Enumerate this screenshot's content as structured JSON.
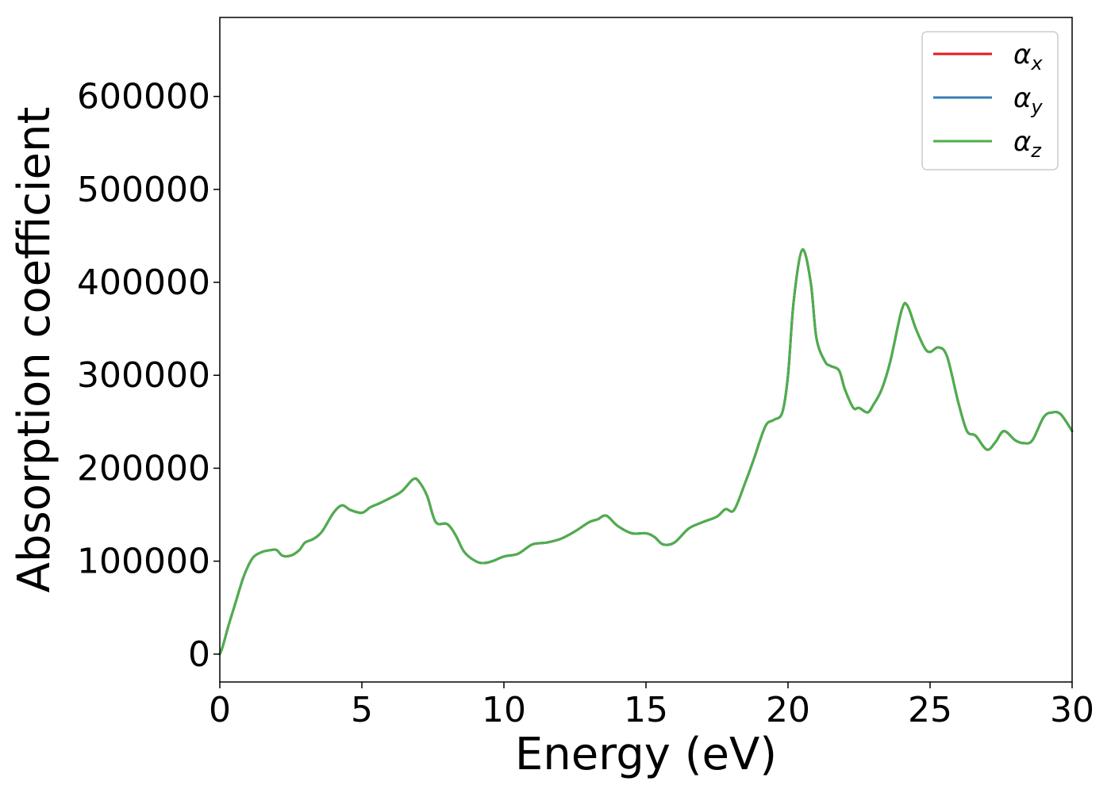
{
  "chart_data": {
    "type": "line",
    "xlabel": "Energy (eV)",
    "ylabel": "Absorption coefficient",
    "xlim": [
      0,
      30
    ],
    "ylim": [
      -30000,
      685000
    ],
    "xticks": [
      0,
      5,
      10,
      15,
      20,
      25,
      30
    ],
    "yticks": [
      0,
      100000,
      200000,
      300000,
      400000,
      500000,
      600000
    ],
    "grid": false,
    "legend": "top-right",
    "x": [
      0,
      0.1,
      0.3,
      0.5,
      0.8,
      1.0,
      1.2,
      1.5,
      1.8,
      2.0,
      2.2,
      2.5,
      2.8,
      3.0,
      3.3,
      3.6,
      4.0,
      4.3,
      4.6,
      5.0,
      5.3,
      5.6,
      6.0,
      6.4,
      6.8,
      7.0,
      7.3,
      7.6,
      8.0,
      8.3,
      8.6,
      9.0,
      9.3,
      9.6,
      10.0,
      10.5,
      11.0,
      11.5,
      12.0,
      12.5,
      13.0,
      13.3,
      13.6,
      14.0,
      14.5,
      15.0,
      15.3,
      15.6,
      16.0,
      16.5,
      17.0,
      17.5,
      17.8,
      18.1,
      18.5,
      18.8,
      19.2,
      19.5,
      19.8,
      20.0,
      20.2,
      20.5,
      20.8,
      21.0,
      21.3,
      21.5,
      21.8,
      22.0,
      22.3,
      22.5,
      22.8,
      23.0,
      23.3,
      23.6,
      24.0,
      24.2,
      24.5,
      24.8,
      25.0,
      25.3,
      25.6,
      26.0,
      26.3,
      26.6,
      27.0,
      27.3,
      27.6,
      28.0,
      28.3,
      28.6,
      29.0,
      29.3,
      29.6,
      30.0
    ],
    "series": [
      {
        "name": "αx",
        "color": "#e41a1c",
        "values": [
          0,
          8000,
          30000,
          50000,
          80000,
          95000,
          105000,
          110000,
          112000,
          112000,
          106000,
          106000,
          112000,
          120000,
          124000,
          132000,
          152000,
          160000,
          155000,
          152000,
          158000,
          162000,
          168000,
          175000,
          188000,
          186000,
          170000,
          142000,
          140000,
          128000,
          110000,
          100000,
          98000,
          100000,
          105000,
          108000,
          118000,
          120000,
          124000,
          132000,
          142000,
          145000,
          149000,
          138000,
          130000,
          130000,
          126000,
          118000,
          120000,
          135000,
          142000,
          148000,
          156000,
          155000,
          185000,
          210000,
          245000,
          252000,
          260000,
          300000,
          380000,
          435000,
          400000,
          340000,
          315000,
          310000,
          305000,
          285000,
          265000,
          265000,
          260000,
          268000,
          285000,
          315000,
          370000,
          375000,
          350000,
          330000,
          325000,
          330000,
          320000,
          270000,
          240000,
          235000,
          220000,
          228000,
          240000,
          230000,
          227000,
          230000,
          255000,
          260000,
          258000,
          240000
        ]
      },
      {
        "name": "αy",
        "color": "#377eb8",
        "values": [
          0,
          8000,
          30000,
          50000,
          80000,
          95000,
          105000,
          110000,
          112000,
          112000,
          106000,
          106000,
          112000,
          120000,
          124000,
          132000,
          152000,
          160000,
          155000,
          152000,
          158000,
          162000,
          168000,
          175000,
          188000,
          186000,
          170000,
          142000,
          140000,
          128000,
          110000,
          100000,
          98000,
          100000,
          105000,
          108000,
          118000,
          120000,
          124000,
          132000,
          142000,
          145000,
          149000,
          138000,
          130000,
          130000,
          126000,
          118000,
          120000,
          135000,
          142000,
          148000,
          156000,
          155000,
          185000,
          210000,
          245000,
          252000,
          260000,
          300000,
          380000,
          435000,
          400000,
          340000,
          315000,
          310000,
          305000,
          285000,
          265000,
          265000,
          260000,
          268000,
          285000,
          315000,
          370000,
          375000,
          350000,
          330000,
          325000,
          330000,
          320000,
          270000,
          240000,
          235000,
          220000,
          228000,
          240000,
          230000,
          227000,
          230000,
          255000,
          260000,
          258000,
          240000
        ]
      },
      {
        "name": "αz",
        "color": "#4daf4a",
        "values": [
          0,
          8000,
          30000,
          50000,
          80000,
          95000,
          105000,
          110000,
          112000,
          112000,
          106000,
          106000,
          112000,
          120000,
          124000,
          132000,
          152000,
          160000,
          155000,
          152000,
          158000,
          162000,
          168000,
          175000,
          188000,
          186000,
          170000,
          142000,
          140000,
          128000,
          110000,
          100000,
          98000,
          100000,
          105000,
          108000,
          118000,
          120000,
          124000,
          132000,
          142000,
          145000,
          149000,
          138000,
          130000,
          130000,
          126000,
          118000,
          120000,
          135000,
          142000,
          148000,
          156000,
          155000,
          185000,
          210000,
          245000,
          252000,
          260000,
          300000,
          380000,
          435000,
          400000,
          340000,
          315000,
          310000,
          305000,
          285000,
          265000,
          265000,
          260000,
          268000,
          285000,
          315000,
          370000,
          375000,
          350000,
          330000,
          325000,
          330000,
          320000,
          270000,
          240000,
          235000,
          220000,
          228000,
          240000,
          230000,
          227000,
          230000,
          255000,
          260000,
          258000,
          240000
        ]
      }
    ],
    "legend_entries": [
      {
        "symbol": "α",
        "sub": "x",
        "color": "#e41a1c"
      },
      {
        "symbol": "α",
        "sub": "y",
        "color": "#377eb8"
      },
      {
        "symbol": "α",
        "sub": "z",
        "color": "#4daf4a"
      }
    ]
  }
}
